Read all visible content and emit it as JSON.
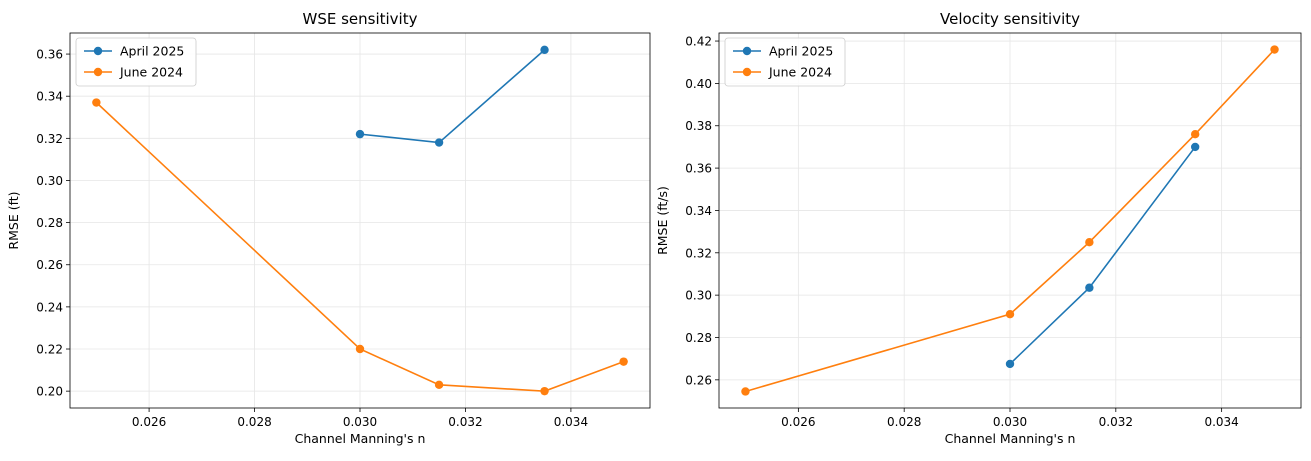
{
  "chart_data": [
    {
      "type": "line",
      "title": "WSE sensitivity",
      "xlabel": "Channel Manning's n",
      "ylabel": "RMSE (ft)",
      "xlim": [
        0.0245,
        0.0355
      ],
      "ylim": [
        0.192,
        0.37
      ],
      "xticks": [
        "0.026",
        "0.028",
        "0.030",
        "0.032",
        "0.034"
      ],
      "yticks": [
        "0.20",
        "0.22",
        "0.24",
        "0.26",
        "0.28",
        "0.30",
        "0.32",
        "0.34",
        "0.36"
      ],
      "grid": true,
      "legend_position": "top-left",
      "series": [
        {
          "name": "April 2025",
          "color": "#1f77b4",
          "x": [
            0.03,
            0.0315,
            0.0335
          ],
          "y": [
            0.322,
            0.318,
            0.362
          ]
        },
        {
          "name": "June 2024",
          "color": "#ff7f0e",
          "x": [
            0.025,
            0.03,
            0.0315,
            0.0335,
            0.035
          ],
          "y": [
            0.337,
            0.22,
            0.203,
            0.2,
            0.214
          ]
        }
      ]
    },
    {
      "type": "line",
      "title": "Velocity sensitivity",
      "xlabel": "Channel Manning's n",
      "ylabel": "RMSE (ft/s)",
      "xlim": [
        0.0245,
        0.0355
      ],
      "ylim": [
        0.2467,
        0.4238
      ],
      "xticks": [
        "0.026",
        "0.028",
        "0.030",
        "0.032",
        "0.034"
      ],
      "yticks": [
        "0.26",
        "0.28",
        "0.30",
        "0.32",
        "0.34",
        "0.36",
        "0.38",
        "0.40",
        "0.42"
      ],
      "grid": true,
      "legend_position": "top-left",
      "series": [
        {
          "name": "April 2025",
          "color": "#1f77b4",
          "x": [
            0.03,
            0.0315,
            0.0335
          ],
          "y": [
            0.2675,
            0.3035,
            0.37
          ]
        },
        {
          "name": "June 2024",
          "color": "#ff7f0e",
          "x": [
            0.025,
            0.03,
            0.0315,
            0.0335,
            0.035
          ],
          "y": [
            0.2545,
            0.291,
            0.325,
            0.376,
            0.416
          ]
        }
      ]
    }
  ]
}
